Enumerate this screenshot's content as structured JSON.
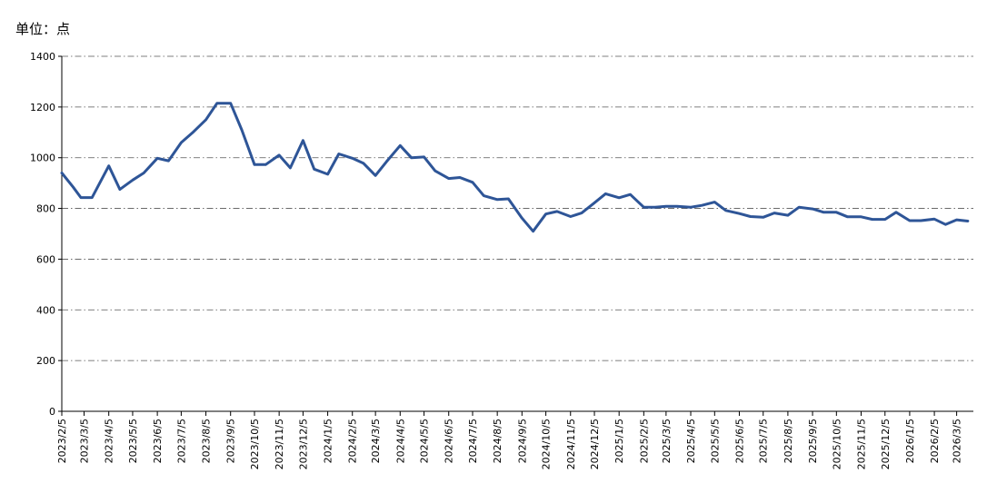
{
  "unit_label": "单位：点",
  "chart_data": {
    "type": "line",
    "title": "",
    "xlabel": "",
    "ylabel": "",
    "ylim": [
      0,
      1400
    ],
    "yticks": [
      0,
      200,
      400,
      600,
      800,
      1000,
      1200,
      1400
    ],
    "grid": "horizontal dash-dot",
    "legend": "none",
    "x_tick_labels": [
      "2023/2/5",
      "2023/3/5",
      "2023/4/5",
      "2023/5/5",
      "2023/6/5",
      "2023/7/5",
      "2023/8/5",
      "2023/9/5",
      "2023/10/5",
      "2023/11/5",
      "2023/12/5",
      "2024/1/5",
      "2024/2/5",
      "2024/3/5",
      "2024/4/5",
      "2024/5/5",
      "2024/6/5",
      "2024/7/5",
      "2024/8/5",
      "2024/9/5",
      "2024/10/5",
      "2024/11/5",
      "2024/12/5",
      "2025/1/5",
      "2025/2/5",
      "2025/3/5",
      "2025/4/5",
      "2025/5/5",
      "2025/6/5",
      "2025/7/5",
      "2025/8/5",
      "2025/9/5",
      "2025/10/5",
      "2025/11/5",
      "2025/12/5",
      "2026/1/5",
      "2026/2/5",
      "2026/3/5"
    ],
    "series": [
      {
        "color": "#2e5597",
        "points": [
          [
            "2023/2/5",
            940
          ],
          [
            "2023/2/19",
            885
          ],
          [
            "2023/3/1",
            843
          ],
          [
            "2023/3/15",
            843
          ],
          [
            "2023/4/5",
            968
          ],
          [
            "2023/4/19",
            875
          ],
          [
            "2023/5/5",
            912
          ],
          [
            "2023/5/19",
            940
          ],
          [
            "2023/6/5",
            998
          ],
          [
            "2023/6/19",
            988
          ],
          [
            "2023/7/5",
            1060
          ],
          [
            "2023/7/19",
            1098
          ],
          [
            "2023/8/5",
            1150
          ],
          [
            "2023/8/19",
            1215
          ],
          [
            "2023/9/5",
            1215
          ],
          [
            "2023/9/19",
            1110
          ],
          [
            "2023/10/5",
            973
          ],
          [
            "2023/10/19",
            973
          ],
          [
            "2023/11/5",
            1010
          ],
          [
            "2023/11/19",
            960
          ],
          [
            "2023/12/5",
            1068
          ],
          [
            "2023/12/19",
            955
          ],
          [
            "2024/1/5",
            935
          ],
          [
            "2024/1/19",
            1015
          ],
          [
            "2024/2/5",
            998
          ],
          [
            "2024/2/19",
            978
          ],
          [
            "2024/3/5",
            930
          ],
          [
            "2024/3/19",
            985
          ],
          [
            "2024/4/5",
            1048
          ],
          [
            "2024/4/19",
            1000
          ],
          [
            "2024/5/5",
            1003
          ],
          [
            "2024/5/19",
            948
          ],
          [
            "2024/6/5",
            918
          ],
          [
            "2024/6/19",
            922
          ],
          [
            "2024/7/5",
            903
          ],
          [
            "2024/7/19",
            850
          ],
          [
            "2024/8/5",
            835
          ],
          [
            "2024/8/19",
            838
          ],
          [
            "2024/9/5",
            762
          ],
          [
            "2024/9/19",
            710
          ],
          [
            "2024/10/5",
            778
          ],
          [
            "2024/10/19",
            788
          ],
          [
            "2024/11/5",
            768
          ],
          [
            "2024/11/19",
            782
          ],
          [
            "2024/12/5",
            822
          ],
          [
            "2024/12/19",
            858
          ],
          [
            "2025/1/5",
            842
          ],
          [
            "2025/1/19",
            855
          ],
          [
            "2025/2/5",
            805
          ],
          [
            "2025/2/19",
            805
          ],
          [
            "2025/3/5",
            808
          ],
          [
            "2025/3/19",
            808
          ],
          [
            "2025/4/5",
            805
          ],
          [
            "2025/4/19",
            812
          ],
          [
            "2025/5/5",
            825
          ],
          [
            "2025/5/19",
            792
          ],
          [
            "2025/6/5",
            780
          ],
          [
            "2025/6/19",
            768
          ],
          [
            "2025/7/5",
            765
          ],
          [
            "2025/7/19",
            782
          ],
          [
            "2025/8/5",
            773
          ],
          [
            "2025/8/19",
            805
          ],
          [
            "2025/9/5",
            798
          ],
          [
            "2025/9/19",
            785
          ],
          [
            "2025/10/5",
            785
          ],
          [
            "2025/10/19",
            767
          ],
          [
            "2025/11/5",
            767
          ],
          [
            "2025/11/19",
            757
          ],
          [
            "2025/12/5",
            757
          ],
          [
            "2025/12/19",
            785
          ],
          [
            "2026/1/5",
            752
          ],
          [
            "2026/1/19",
            752
          ],
          [
            "2026/2/5",
            758
          ],
          [
            "2026/2/19",
            737
          ],
          [
            "2026/3/5",
            755
          ],
          [
            "2026/3/19",
            750
          ]
        ]
      }
    ]
  }
}
